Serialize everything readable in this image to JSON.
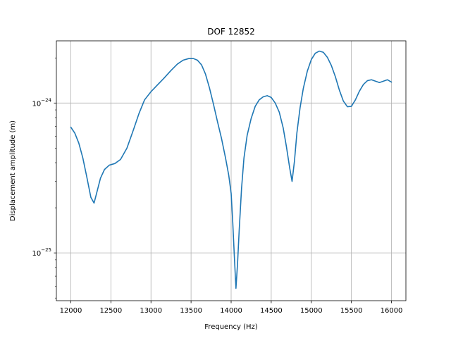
{
  "chart_data": {
    "type": "line",
    "title": "DOF 12852",
    "xlabel": "Frequency (Hz)",
    "ylabel": "Displacement amplitude (m)",
    "x_scale": "linear",
    "y_scale": "log",
    "xlim": [
      11820,
      16180
    ],
    "ylim": [
      4.8e-26,
      2.6e-24
    ],
    "x_ticks": [
      12000,
      12500,
      13000,
      13500,
      14000,
      14500,
      15000,
      15500,
      16000
    ],
    "x_tick_labels": [
      "12000",
      "12500",
      "13000",
      "13500",
      "14000",
      "14500",
      "15000",
      "15500",
      "16000"
    ],
    "y_ticks": [
      1e-25,
      1e-24
    ],
    "y_tick_labels": [
      {
        "base": "10",
        "exp": "−25"
      },
      {
        "base": "10",
        "exp": "−24"
      }
    ],
    "grid": true,
    "line_color": "#1f77b4",
    "series": [
      {
        "x": [
          12000,
          12050,
          12100,
          12150,
          12200,
          12250,
          12290,
          12330,
          12370,
          12420,
          12480,
          12550,
          12620,
          12700,
          12780,
          12850,
          12920,
          13000,
          13080,
          13160,
          13250,
          13330,
          13400,
          13470,
          13530,
          13580,
          13630,
          13680,
          13730,
          13780,
          13830,
          13880,
          13930,
          13970,
          14000,
          14020,
          14040,
          14060,
          14080,
          14100,
          14130,
          14160,
          14200,
          14250,
          14300,
          14350,
          14400,
          14450,
          14500,
          14550,
          14600,
          14650,
          14690,
          14730,
          14760,
          14790,
          14820,
          14860,
          14900,
          14950,
          15000,
          15050,
          15100,
          15150,
          15200,
          15250,
          15300,
          15350,
          15400,
          15450,
          15500,
          15550,
          15600,
          15650,
          15700,
          15750,
          15800,
          15850,
          15900,
          15950,
          16000
        ],
        "values": [
          6.9e-25,
          6.3e-25,
          5.4e-25,
          4.3e-25,
          3.2e-25,
          2.35e-25,
          2.15e-25,
          2.6e-25,
          3.15e-25,
          3.6e-25,
          3.85e-25,
          3.95e-25,
          4.2e-25,
          5e-25,
          6.6e-25,
          8.5e-25,
          1.05e-24,
          1.19e-24,
          1.32e-24,
          1.46e-24,
          1.65e-24,
          1.82e-24,
          1.93e-24,
          1.98e-24,
          1.98e-24,
          1.93e-24,
          1.8e-24,
          1.56e-24,
          1.26e-24,
          9.8e-25,
          7.5e-25,
          5.8e-25,
          4.3e-25,
          3.3e-25,
          2.5e-25,
          1.6e-25,
          9.5e-26,
          5.8e-26,
          8.5e-26,
          1.4e-25,
          2.7e-25,
          4.3e-25,
          6.1e-25,
          7.9e-25,
          9.5e-25,
          1.05e-24,
          1.1e-24,
          1.12e-24,
          1.09e-24,
          1e-24,
          8.7e-25,
          6.8e-25,
          5.1e-25,
          3.7e-25,
          3e-25,
          4.1e-25,
          6.3e-25,
          9.3e-25,
          1.25e-24,
          1.63e-24,
          1.95e-24,
          2.15e-24,
          2.22e-24,
          2.18e-24,
          2.02e-24,
          1.78e-24,
          1.5e-24,
          1.22e-24,
          1.03e-24,
          9.45e-25,
          9.5e-25,
          1.05e-24,
          1.2e-24,
          1.33e-24,
          1.41e-24,
          1.43e-24,
          1.4e-24,
          1.37e-24,
          1.4e-24,
          1.43e-24,
          1.38e-24
        ]
      }
    ]
  }
}
